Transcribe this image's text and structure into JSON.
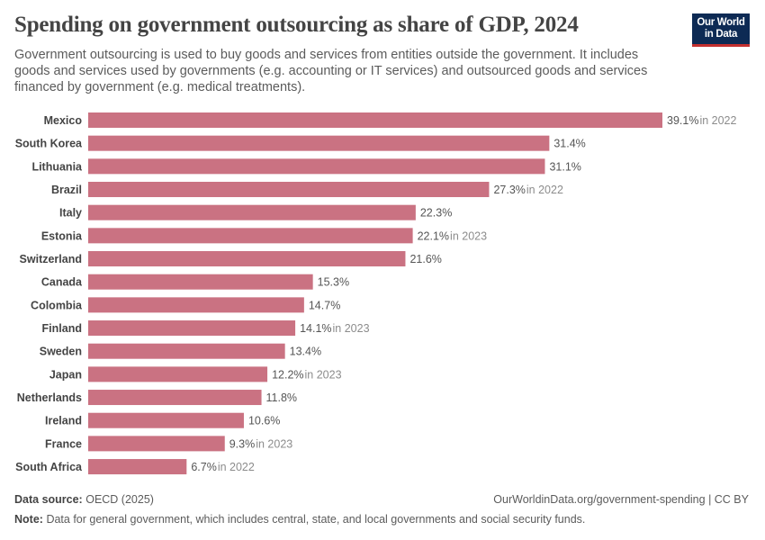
{
  "header": {
    "title": "Spending on government outsourcing as share of GDP, 2024",
    "subtitle": "Government outsourcing is used to buy goods and services from entities outside the government. It includes goods and services used by governments (e.g. accounting or IT services) and outsourced goods and services financed by government (e.g. medical treatments).",
    "logo_line1": "Our World",
    "logo_line2": "in Data"
  },
  "colors": {
    "bar": "#ca7282",
    "label": "#444444",
    "value": "#555555",
    "year_note": "#8c8c8c"
  },
  "chart_data": {
    "type": "bar",
    "orientation": "horizontal",
    "title": "Spending on government outsourcing as share of GDP, 2024",
    "unit": "%",
    "categories": [
      "Mexico",
      "South Korea",
      "Lithuania",
      "Brazil",
      "Italy",
      "Estonia",
      "Switzerland",
      "Canada",
      "Colombia",
      "Finland",
      "Sweden",
      "Japan",
      "Netherlands",
      "Ireland",
      "France",
      "South Africa"
    ],
    "values": [
      39.1,
      31.4,
      31.1,
      27.3,
      22.3,
      22.1,
      21.6,
      15.3,
      14.7,
      14.1,
      13.4,
      12.2,
      11.8,
      10.6,
      9.3,
      6.7
    ],
    "value_labels": [
      "39.1%",
      "31.4%",
      "31.1%",
      "27.3%",
      "22.3%",
      "22.1%",
      "21.6%",
      "15.3%",
      "14.7%",
      "14.1%",
      "13.4%",
      "12.2%",
      "11.8%",
      "10.6%",
      "9.3%",
      "6.7%"
    ],
    "year_notes": [
      "in 2022",
      "",
      "",
      "in 2022",
      "",
      "in 2023",
      "",
      "",
      "",
      "in 2023",
      "",
      "in 2023",
      "",
      "",
      "in 2023",
      "in 2022"
    ],
    "xlim": [
      0,
      39.1
    ],
    "grid": false,
    "legend": "none"
  },
  "footer": {
    "source_label": "Data source:",
    "source_text": "OECD (2025)",
    "credit": "OurWorldinData.org/government-spending | CC BY",
    "note_label": "Note:",
    "note_text": "Data for general government, which includes central, state, and local governments and social security funds."
  }
}
